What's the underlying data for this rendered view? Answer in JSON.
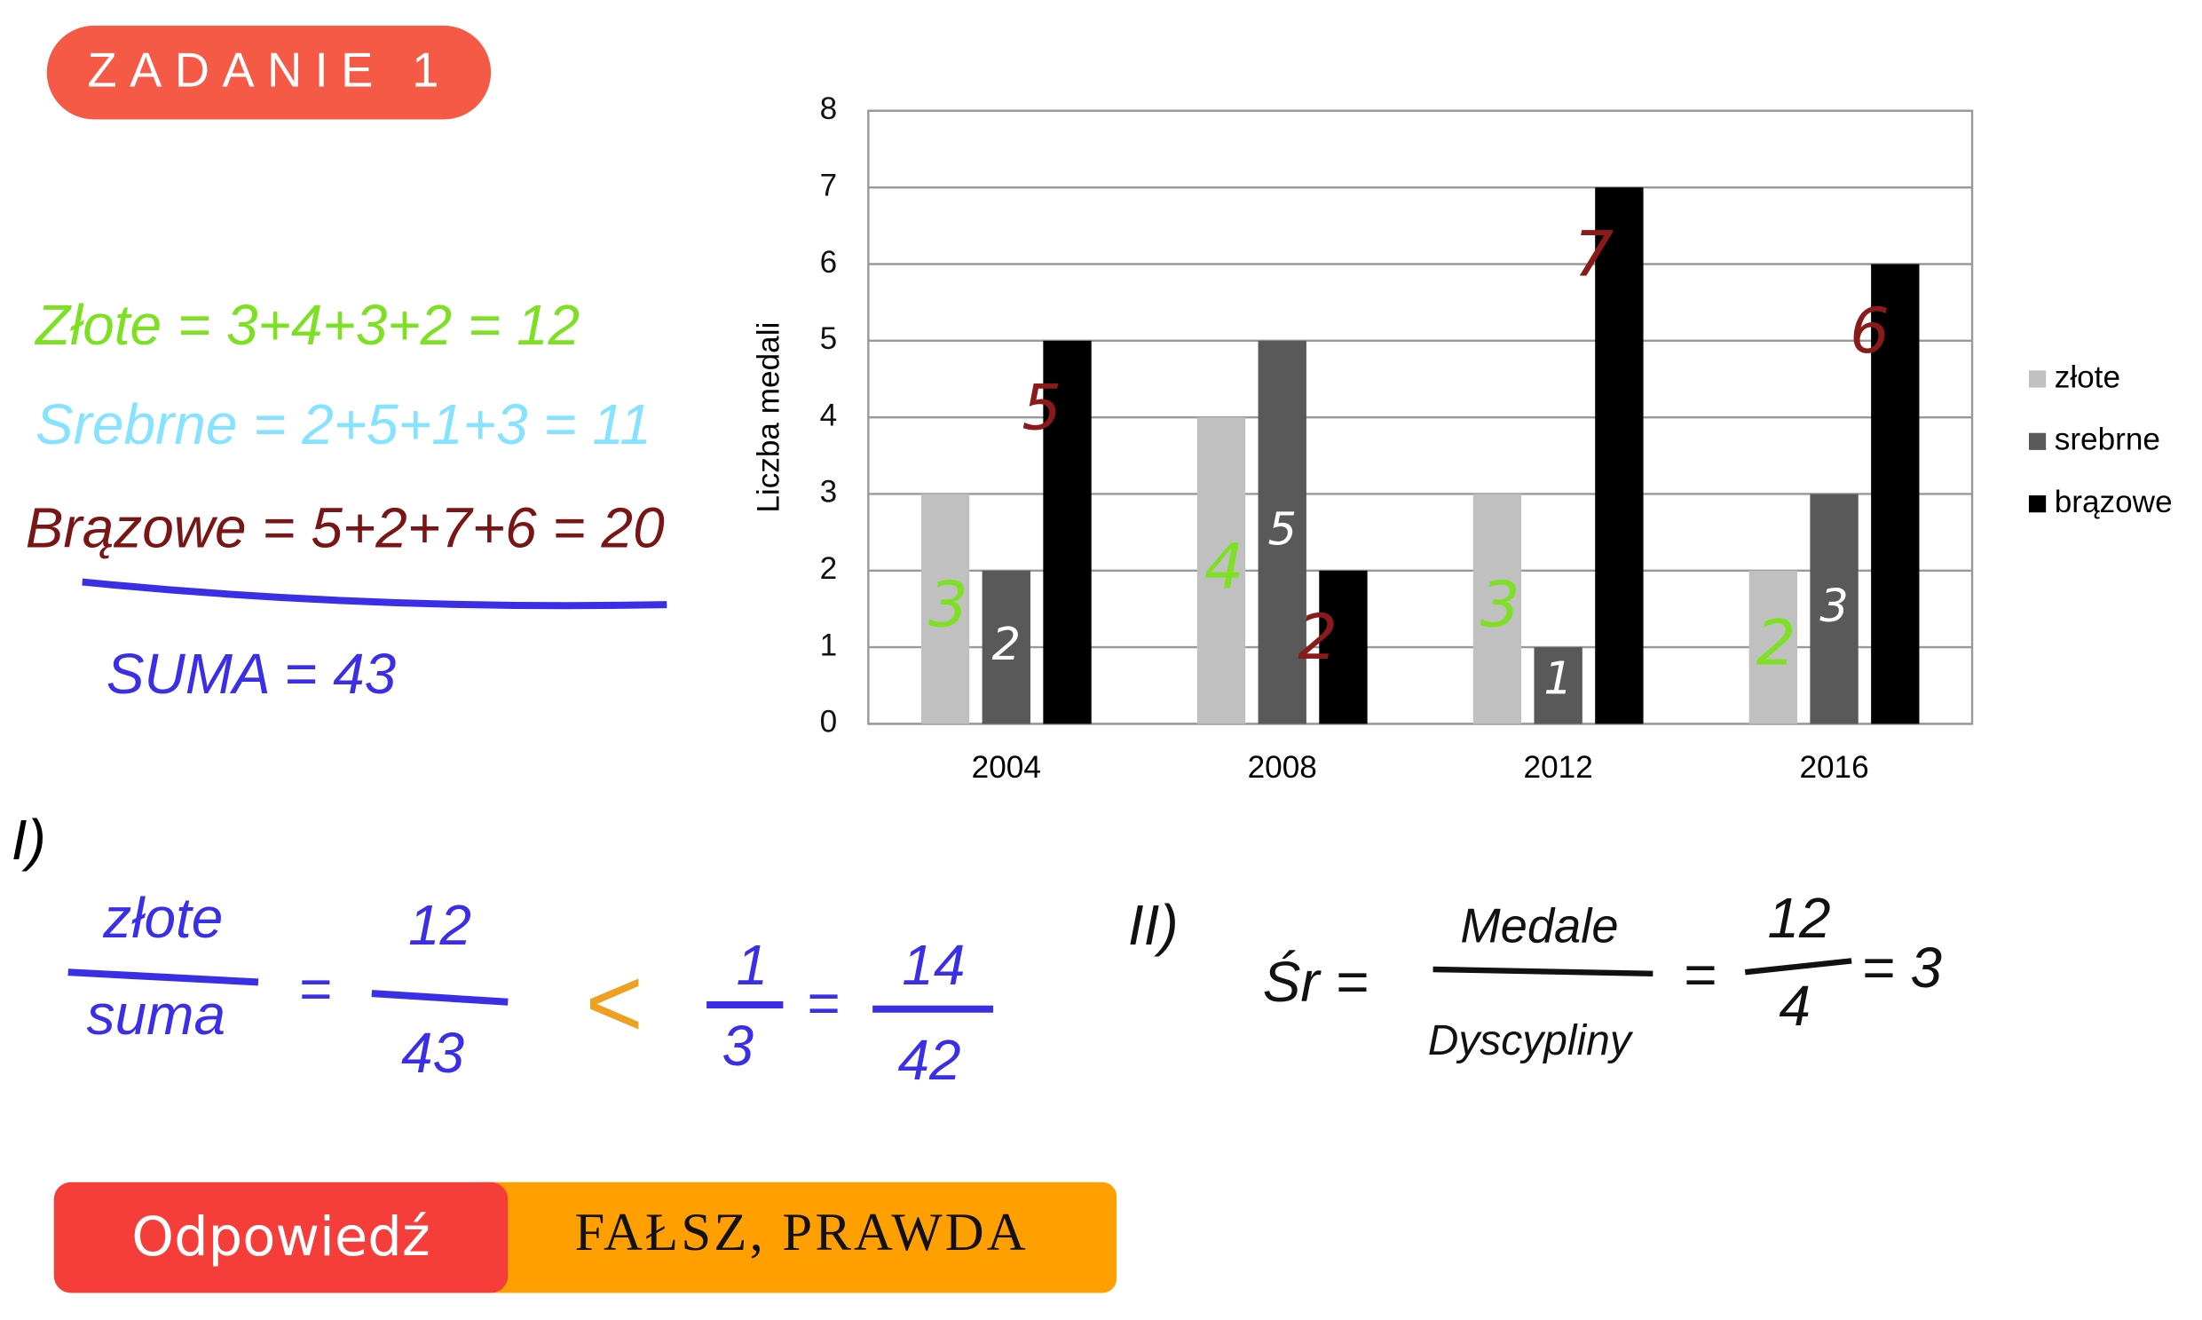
{
  "header": {
    "title": "ZADANIE 1"
  },
  "chart_data": {
    "type": "bar",
    "y_label": "Liczba medali",
    "categories": [
      "2004",
      "2008",
      "2012",
      "2016"
    ],
    "series": [
      {
        "name": "złote",
        "color": "#c0c0c0",
        "label_color": "#7de022",
        "values": [
          3,
          4,
          3,
          2
        ]
      },
      {
        "name": "srebrne",
        "color": "#595959",
        "label_color": "#ffffff",
        "values": [
          2,
          5,
          1,
          3
        ]
      },
      {
        "name": "brązowe",
        "color": "#000000",
        "label_color": "#8b1a1a",
        "values": [
          5,
          2,
          7,
          6
        ]
      }
    ],
    "ylim": [
      0,
      8
    ],
    "yticks": [
      0,
      1,
      2,
      3,
      4,
      5,
      6,
      7,
      8
    ],
    "grid": true,
    "legend": "right"
  },
  "notes": {
    "sums": [
      "Złote = 3+4+3+2 = 12",
      "Srebrne = 2+5+1+3 = 11",
      "Brązowe = 5+2+7+6 = 20"
    ],
    "total": "SUMA = 43",
    "part1": {
      "label": "I)",
      "fraction1": [
        "złote",
        "suma"
      ],
      "eq1": "=",
      "fraction2": [
        "12",
        "43"
      ],
      "compare": "<",
      "fraction3": [
        "1",
        "3"
      ],
      "eq2": "=",
      "fraction4": [
        "14",
        "42"
      ]
    },
    "part2": {
      "label": "II)",
      "lhs": "Śr =",
      "fraction1": [
        "Medale",
        "Dyscypliny"
      ],
      "eq1": "=",
      "fraction2": [
        "12",
        "4"
      ],
      "result": "= 3"
    }
  },
  "answer": {
    "label": "Odpowiedź",
    "text": "FAŁSZ, PRAWDA"
  }
}
